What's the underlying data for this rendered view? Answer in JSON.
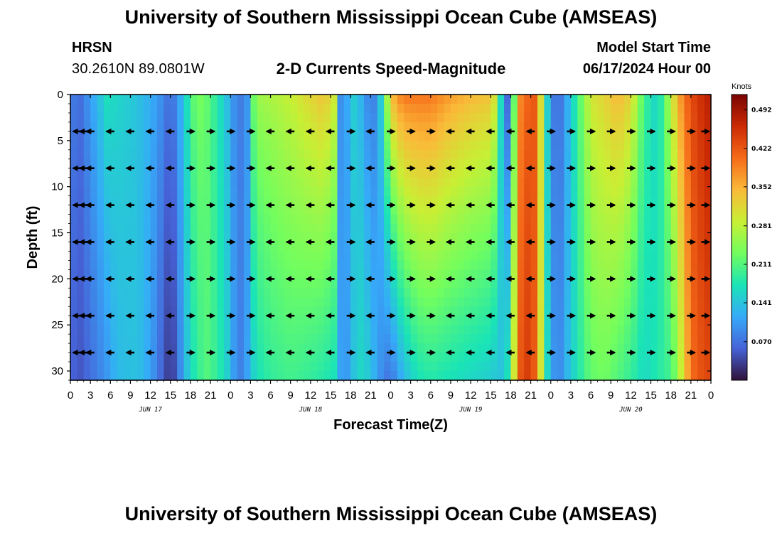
{
  "header": {
    "title": "University of Southern Mississippi Ocean Cube (AMSEAS)",
    "station": "HRSN",
    "coords": "30.2610N  89.0801W",
    "subtitle": "2-D Currents Speed-Magnitude",
    "model_start_label": "Model Start Time",
    "model_start_value": "06/17/2024 Hour 00"
  },
  "footer": {
    "title": "University of Southern Mississippi Ocean Cube (AMSEAS)"
  },
  "colors": {
    "scale": [
      "#30123b",
      "#4662d7",
      "#36aaf9",
      "#1ae4b6",
      "#72fe5e",
      "#c8ef34",
      "#faba39",
      "#f66b19",
      "#cb2a04",
      "#7a0403"
    ]
  },
  "chart_data": {
    "type": "heatmap",
    "title": "2-D Currents Speed-Magnitude",
    "xlabel": "Forecast Time(Z)",
    "ylabel": "Depth (ft)",
    "x_range_hours": [
      0,
      96
    ],
    "ylim": [
      0,
      31
    ],
    "y_inverted": true,
    "x_tick_hours": [
      0,
      3,
      6,
      9,
      12,
      15,
      18,
      21,
      24,
      27,
      30,
      33,
      36,
      39,
      42,
      45,
      48,
      51,
      54,
      57,
      60,
      63,
      66,
      69,
      72,
      75,
      78,
      81,
      84,
      87,
      90,
      93,
      96
    ],
    "x_tick_labels": [
      "0",
      "3",
      "6",
      "9",
      "12",
      "15",
      "18",
      "21",
      "0",
      "3",
      "6",
      "9",
      "12",
      "15",
      "18",
      "21",
      "0",
      "3",
      "6",
      "9",
      "12",
      "15",
      "18",
      "21",
      "0",
      "3",
      "6",
      "9",
      "12",
      "15",
      "18",
      "21",
      "0"
    ],
    "day_labels": [
      {
        "hour": 12,
        "text": "JUN 17"
      },
      {
        "hour": 36,
        "text": "JUN 18"
      },
      {
        "hour": 60,
        "text": "JUN 19"
      },
      {
        "hour": 84,
        "text": "JUN 20"
      }
    ],
    "y_ticks": [
      0,
      5,
      10,
      15,
      20,
      25,
      30
    ],
    "y_tick_labels": [
      "0",
      "5",
      "10",
      "15",
      "20",
      "25",
      "30"
    ],
    "colorbar": {
      "unit": "Knots",
      "min": 0.0,
      "max": 0.52,
      "tick_values": [
        0.07,
        0.141,
        0.211,
        0.281,
        0.352,
        0.422,
        0.492
      ],
      "tick_labels": [
        "0.070",
        "0.141",
        "0.211",
        "0.281",
        "0.352",
        "0.422",
        "0.492"
      ]
    },
    "speed_profile_hours": [
      0,
      1.5,
      4,
      5.5,
      7,
      10,
      12,
      14,
      15,
      16,
      17,
      18,
      19,
      20.5,
      22,
      24,
      25,
      26.5,
      27,
      28,
      30,
      33,
      36,
      38,
      39.5,
      40,
      41,
      42,
      43,
      44,
      45,
      46,
      47,
      48,
      49,
      50,
      51,
      52,
      54,
      57,
      60,
      63,
      64,
      65,
      66,
      67,
      68,
      69,
      70,
      71,
      72,
      73,
      74,
      75,
      76,
      77,
      78,
      80,
      82,
      84,
      86,
      88,
      90,
      91,
      92,
      93,
      94,
      96
    ],
    "speed_surface": [
      0.08,
      0.07,
      0.13,
      0.17,
      0.16,
      0.14,
      0.12,
      0.09,
      0.06,
      0.1,
      0.14,
      0.2,
      0.24,
      0.22,
      0.18,
      0.12,
      0.07,
      0.1,
      0.2,
      0.26,
      0.27,
      0.29,
      0.32,
      0.34,
      0.3,
      0.12,
      0.07,
      0.16,
      0.14,
      0.11,
      0.07,
      0.1,
      0.2,
      0.34,
      0.38,
      0.4,
      0.4,
      0.4,
      0.4,
      0.37,
      0.35,
      0.34,
      0.28,
      0.05,
      0.07,
      0.37,
      0.4,
      0.42,
      0.42,
      0.2,
      0.1,
      0.05,
      0.1,
      0.14,
      0.2,
      0.25,
      0.3,
      0.32,
      0.35,
      0.32,
      0.2,
      0.15,
      0.28,
      0.35,
      0.4,
      0.43,
      0.45,
      0.48
    ],
    "speed_bottom": [
      0.06,
      0.05,
      0.08,
      0.1,
      0.13,
      0.14,
      0.11,
      0.05,
      0.02,
      0.06,
      0.12,
      0.16,
      0.19,
      0.21,
      0.19,
      0.14,
      0.07,
      0.11,
      0.14,
      0.17,
      0.19,
      0.2,
      0.19,
      0.18,
      0.17,
      0.13,
      0.09,
      0.12,
      0.16,
      0.16,
      0.14,
      0.11,
      0.08,
      0.07,
      0.1,
      0.13,
      0.15,
      0.17,
      0.18,
      0.17,
      0.16,
      0.15,
      0.14,
      0.14,
      0.2,
      0.4,
      0.45,
      0.44,
      0.4,
      0.2,
      0.12,
      0.08,
      0.11,
      0.15,
      0.17,
      0.2,
      0.22,
      0.23,
      0.21,
      0.19,
      0.16,
      0.18,
      0.2,
      0.25,
      0.32,
      0.4,
      0.42,
      0.44
    ],
    "vectors": {
      "depths": [
        4,
        8,
        12,
        16,
        20,
        24,
        28
      ],
      "hours": [
        1,
        2,
        3,
        6,
        9,
        12,
        15,
        18,
        21,
        24,
        27,
        30,
        33,
        36,
        39,
        42,
        45,
        48,
        51,
        54,
        57,
        60,
        63,
        66,
        69,
        72,
        75,
        78,
        81,
        84,
        87,
        90,
        93,
        96
      ],
      "directions": [
        "W",
        "W",
        "W",
        "W",
        "W",
        "W",
        "W",
        "E",
        "E",
        "E",
        "E",
        "W",
        "W",
        "W",
        "W",
        "E",
        "W",
        "E",
        "E",
        "E",
        "W",
        "W",
        "W",
        "W",
        "W",
        "E",
        "E",
        "E",
        "E",
        "E",
        "E",
        "E",
        "E",
        "E"
      ]
    }
  }
}
